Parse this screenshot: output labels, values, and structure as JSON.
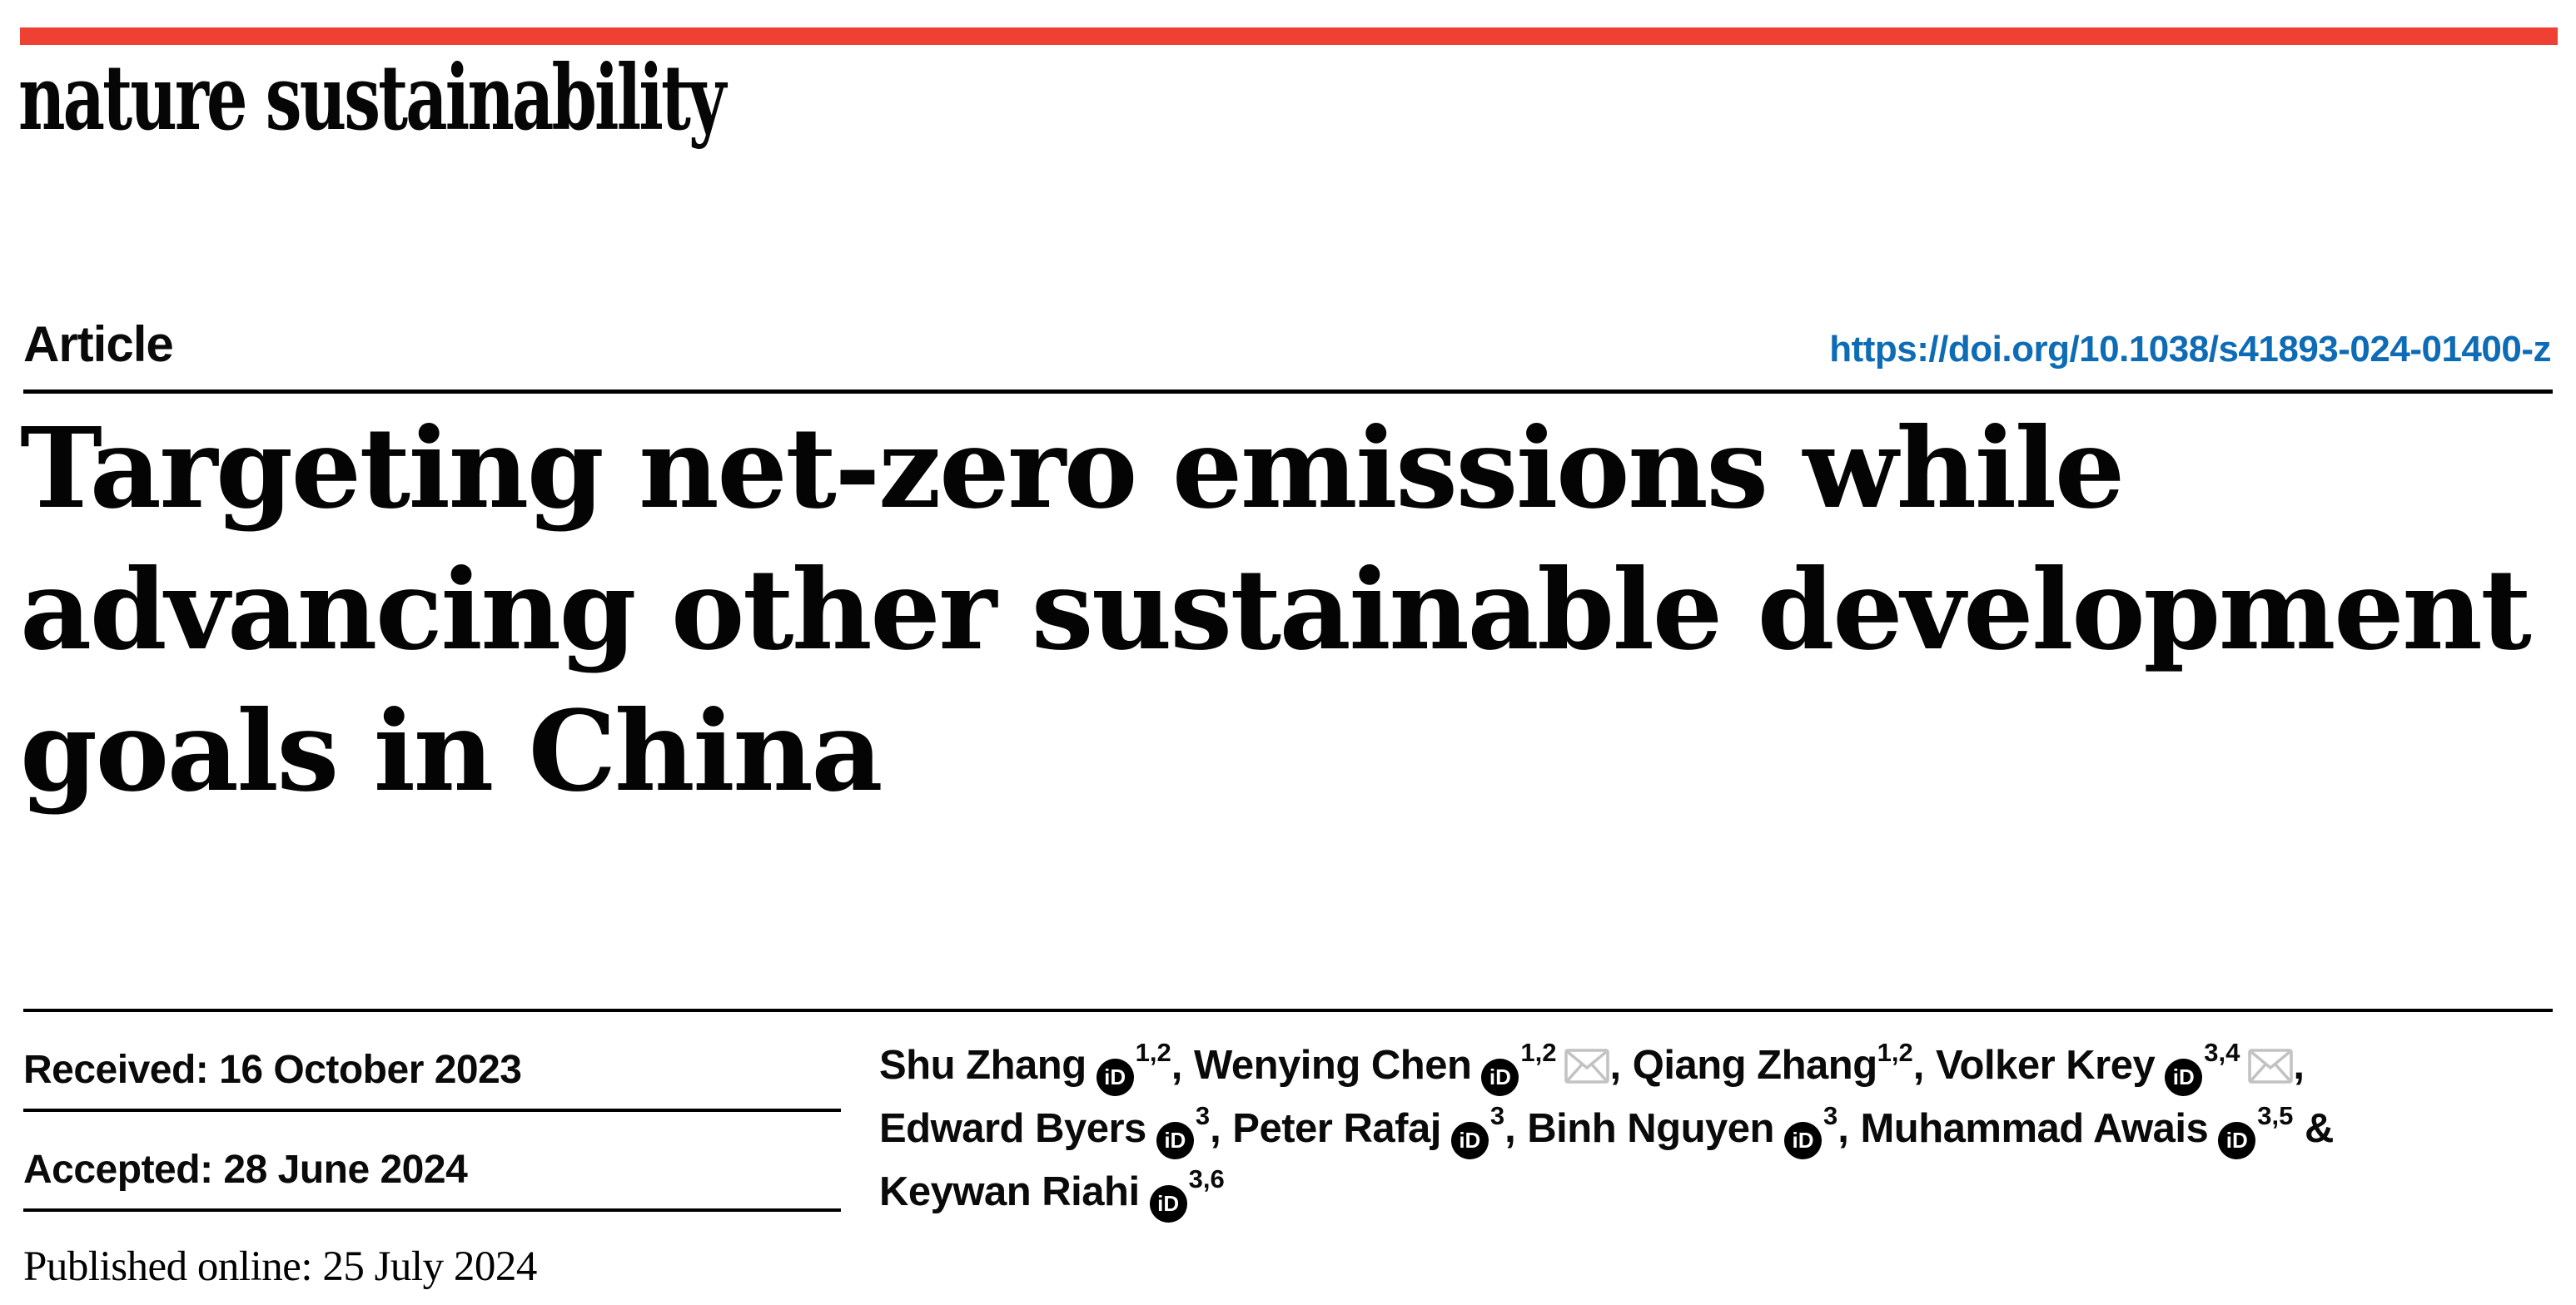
{
  "theme": {
    "accent_red": "#ee4033",
    "link_blue": "#0d6cb5",
    "icon_gray": "#c2c2c2",
    "text_black": "#000000"
  },
  "masthead": {
    "journal": "nature sustainability"
  },
  "header": {
    "article_label": "Article",
    "doi": "https://doi.org/10.1038/s41893-024-01400-z"
  },
  "title": {
    "lines": [
      "Targeting net-zero emissions while",
      "advancing other sustainable development",
      "goals in China"
    ]
  },
  "dates": {
    "received": "Received: 16 October 2023",
    "accepted": "Accepted: 28 June 2024",
    "published": "Published online: 25 July 2024"
  },
  "icons": {
    "orcid_text": "iD",
    "email_icon_name": "envelope"
  },
  "authors": {
    "lines": [
      [
        {
          "name": "Shu Zhang",
          "orcid": true,
          "sup": "1,2",
          "email": false,
          "after": ", "
        },
        {
          "name": "Wenying Chen",
          "orcid": true,
          "sup": "1,2",
          "email": true,
          "after": ", "
        },
        {
          "name": "Qiang Zhang",
          "orcid": false,
          "sup": "1,2",
          "email": false,
          "after": ", "
        },
        {
          "name": "Volker Krey",
          "orcid": true,
          "sup": "3,4",
          "email": true,
          "after": ","
        }
      ],
      [
        {
          "name": "Edward Byers",
          "orcid": true,
          "sup": "3",
          "email": false,
          "after": ", "
        },
        {
          "name": "Peter Rafaj",
          "orcid": true,
          "sup": "3",
          "email": false,
          "after": ", "
        },
        {
          "name": "Binh Nguyen",
          "orcid": true,
          "sup": "3",
          "email": false,
          "after": ", "
        },
        {
          "name": "Muhammad Awais",
          "orcid": true,
          "sup": "3,5",
          "email": false,
          "after": " &"
        }
      ],
      [
        {
          "name": "Keywan Riahi",
          "orcid": true,
          "sup": "3,6",
          "email": false,
          "after": ""
        }
      ]
    ]
  }
}
